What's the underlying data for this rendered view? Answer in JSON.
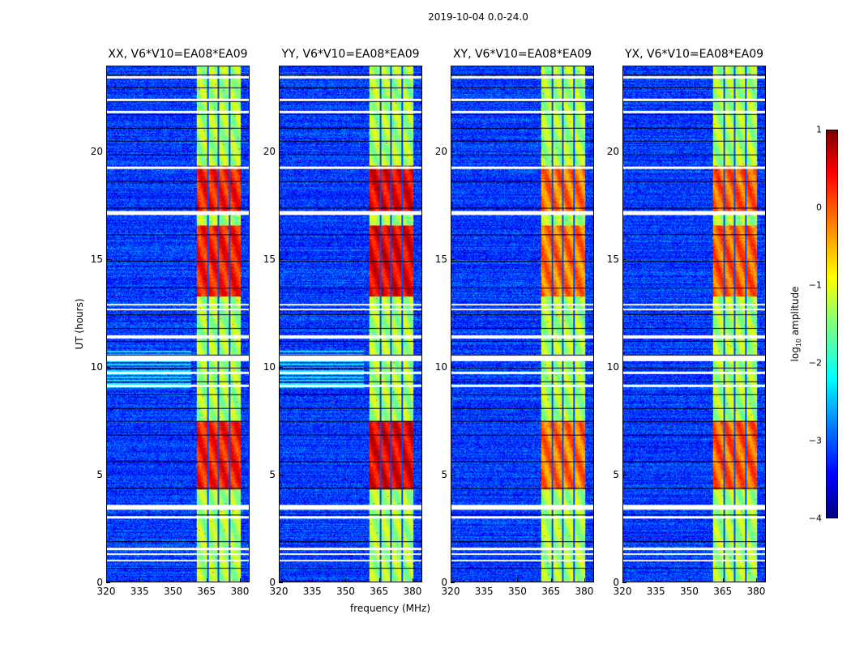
{
  "chart_data": {
    "type": "heatmap",
    "title": "2019-10-04 0.0-24.0",
    "xlabel": "frequency (MHz)",
    "ylabel": "UT (hours)",
    "xlim": [
      320,
      384.4
    ],
    "ylim": [
      0,
      24
    ],
    "xticks": [
      "320",
      "335",
      "350",
      "365",
      "380"
    ],
    "xtick_values": [
      320,
      335,
      350,
      365,
      380
    ],
    "yticks": [
      "0",
      "5",
      "10",
      "15",
      "20"
    ],
    "ytick_values": [
      0,
      5,
      10,
      15,
      20
    ],
    "colorbar": {
      "label_main": "log",
      "label_sub": "10",
      "label_tail": " amplitude",
      "range": [
        -4,
        1
      ],
      "ticks": [
        "1",
        "0",
        "−1",
        "−2",
        "−3",
        "−4"
      ],
      "tick_values": [
        1,
        0,
        -1,
        -2,
        -3,
        -4
      ],
      "colormap": "jet"
    },
    "panels": [
      {
        "title": "XX, V6*V10=EA08*EA09",
        "band_peak": 0.25
      },
      {
        "title": "YY, V6*V10=EA08*EA09",
        "band_peak": 0.45
      },
      {
        "title": "XY, V6*V10=EA08*EA09",
        "band_peak": -0.2
      },
      {
        "title": "YX, V6*V10=EA08*EA09",
        "band_peak": -0.1
      }
    ],
    "bright_band_mhz": [
      360.7,
      380.4
    ],
    "subband_edges_mhz": [
      365.5,
      370.5,
      375.5
    ],
    "background_level": -3.1,
    "flagged_hours": [
      [
        0.95,
        1.05
      ],
      [
        1.25,
        1.35
      ],
      [
        1.5,
        1.6
      ],
      [
        2.95,
        3.05
      ],
      [
        3.35,
        3.6
      ],
      [
        9.1,
        9.2
      ],
      [
        9.7,
        9.8
      ],
      [
        10.3,
        10.55
      ],
      [
        11.35,
        11.5
      ],
      [
        12.65,
        12.75
      ],
      [
        12.9,
        12.95
      ],
      [
        17.1,
        17.3
      ],
      [
        19.25,
        19.35
      ],
      [
        21.85,
        21.95
      ],
      [
        22.4,
        22.5
      ],
      [
        23.45,
        23.55
      ]
    ],
    "bright_hours": [
      [
        4.3,
        7.5
      ],
      [
        13.3,
        16.6
      ],
      [
        17.3,
        19.4
      ]
    ]
  }
}
